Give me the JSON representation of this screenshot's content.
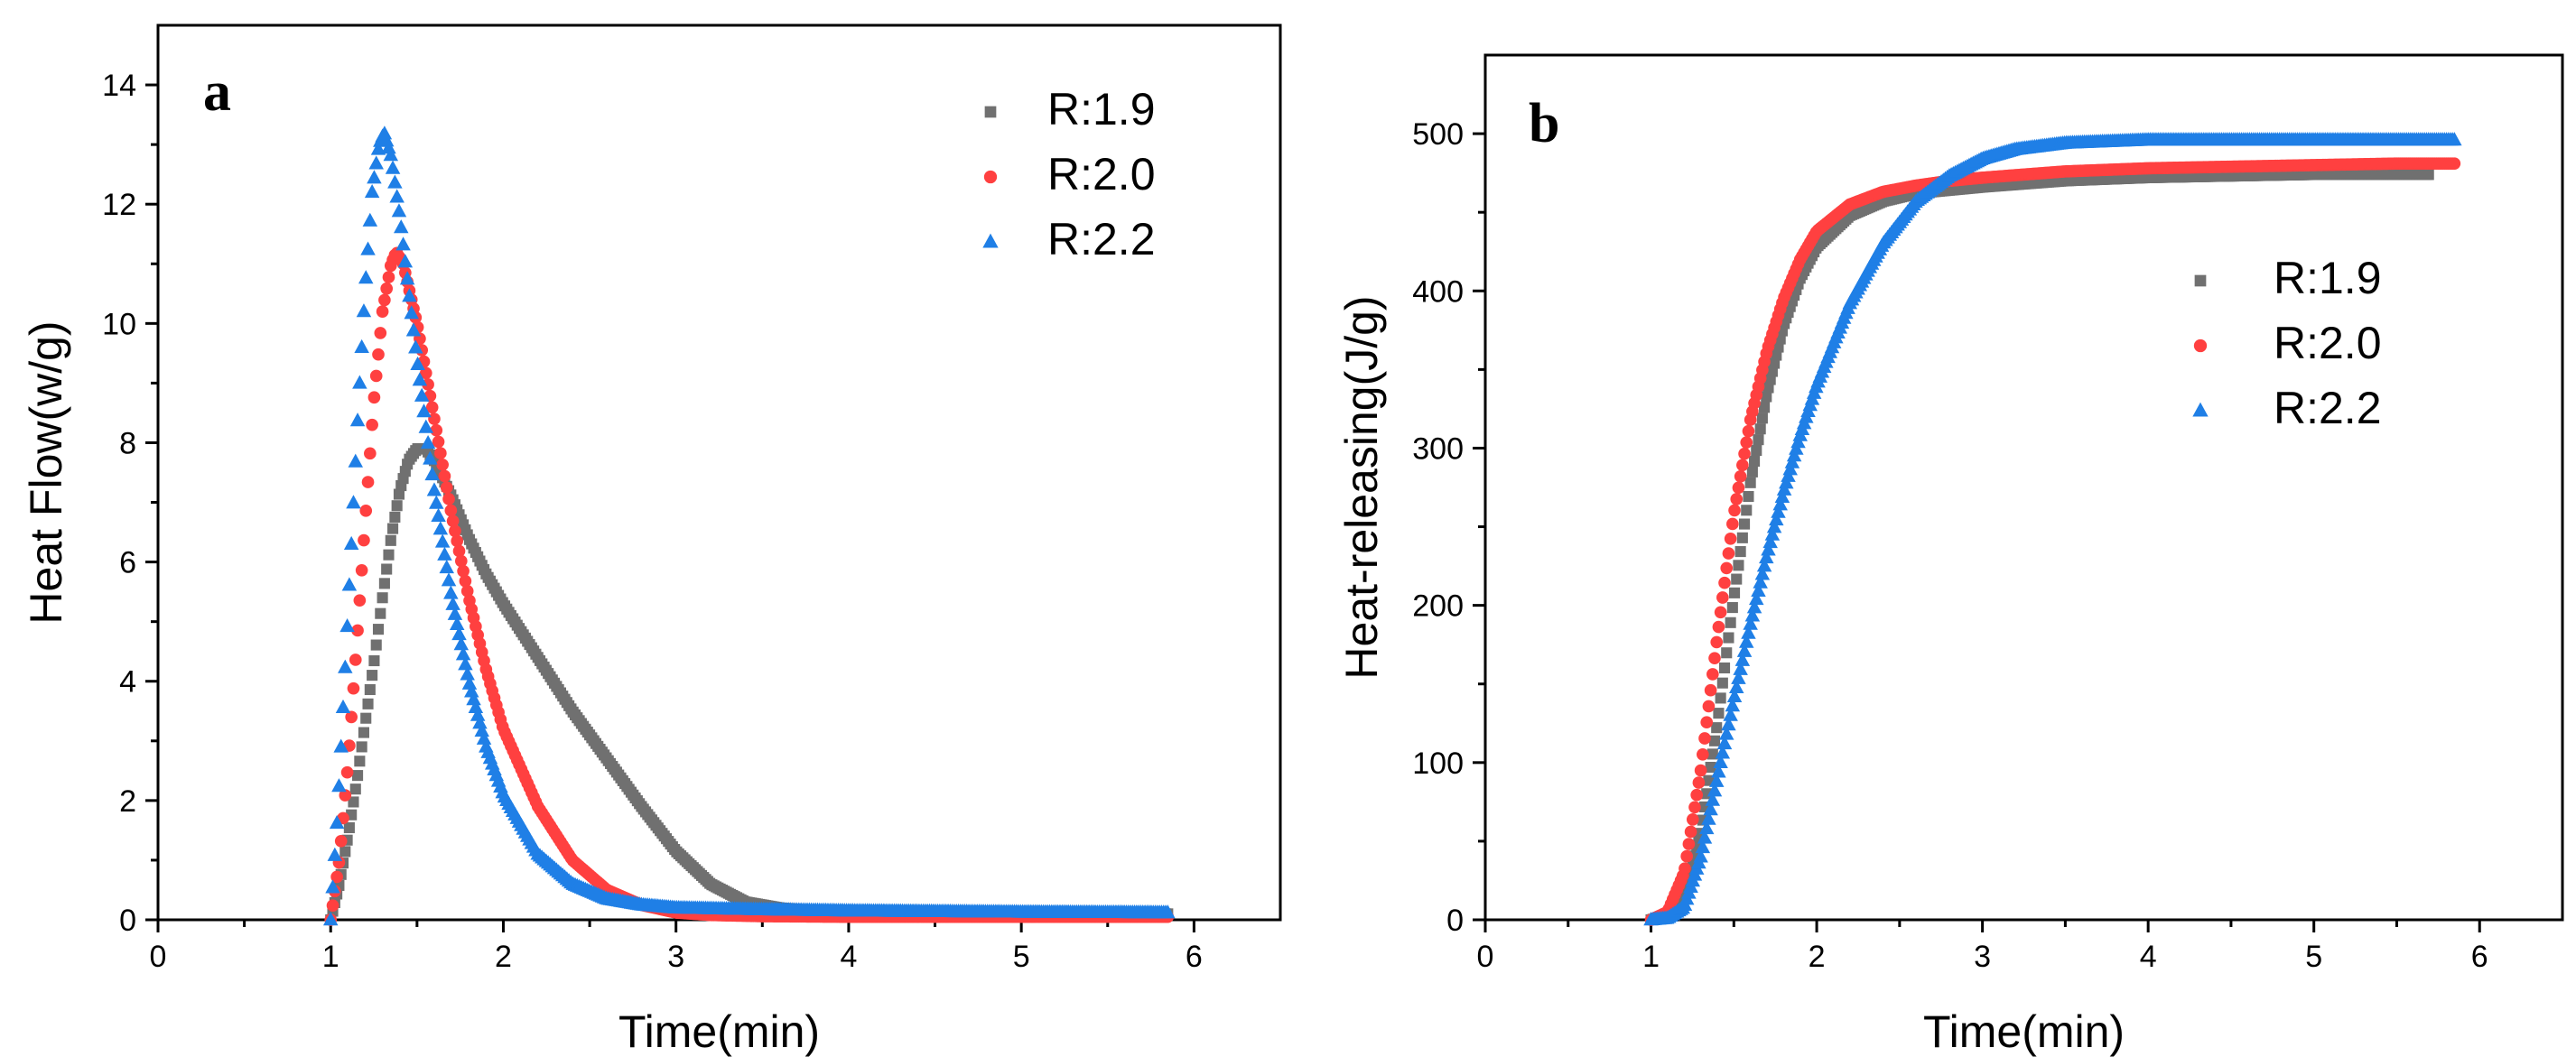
{
  "chart_data": [
    {
      "type": "scatter",
      "panel_label": "a",
      "xlabel": "Time(min)",
      "ylabel": "Heat Flow(w/g)",
      "xlim": [
        0,
        6.5
      ],
      "ylim": [
        0,
        15
      ],
      "xticks": [
        0,
        1,
        2,
        3,
        4,
        5,
        6
      ],
      "yticks": [
        0,
        2,
        4,
        6,
        8,
        10,
        12,
        14
      ],
      "legend_position": "top-right",
      "series": [
        {
          "name": "R:1.9",
          "color": "#707070",
          "marker": "square",
          "points": [
            [
              1.0,
              0.0
            ],
            [
              1.05,
              0.6
            ],
            [
              1.1,
              1.4
            ],
            [
              1.15,
              2.3
            ],
            [
              1.2,
              3.3
            ],
            [
              1.25,
              4.3
            ],
            [
              1.3,
              5.4
            ],
            [
              1.35,
              6.4
            ],
            [
              1.4,
              7.2
            ],
            [
              1.45,
              7.7
            ],
            [
              1.5,
              7.9
            ],
            [
              1.55,
              7.9
            ],
            [
              1.6,
              7.7
            ],
            [
              1.7,
              7.1
            ],
            [
              1.8,
              6.4
            ],
            [
              1.9,
              5.8
            ],
            [
              2.0,
              5.3
            ],
            [
              2.2,
              4.4
            ],
            [
              2.4,
              3.5
            ],
            [
              2.6,
              2.7
            ],
            [
              2.8,
              1.9
            ],
            [
              3.0,
              1.15
            ],
            [
              3.2,
              0.6
            ],
            [
              3.4,
              0.3
            ],
            [
              3.6,
              0.2
            ],
            [
              3.8,
              0.15
            ],
            [
              4.0,
              0.12
            ],
            [
              4.5,
              0.1
            ],
            [
              5.0,
              0.1
            ],
            [
              5.5,
              0.1
            ],
            [
              5.85,
              0.1
            ]
          ]
        },
        {
          "name": "R:2.0",
          "color": "#ff4040",
          "marker": "circle",
          "points": [
            [
              1.0,
              0.0
            ],
            [
              1.05,
              1.0
            ],
            [
              1.1,
              2.6
            ],
            [
              1.15,
              4.6
            ],
            [
              1.2,
              6.7
            ],
            [
              1.25,
              8.7
            ],
            [
              1.3,
              10.2
            ],
            [
              1.35,
              11.0
            ],
            [
              1.38,
              11.2
            ],
            [
              1.42,
              11.0
            ],
            [
              1.5,
              10.0
            ],
            [
              1.6,
              8.4
            ],
            [
              1.7,
              6.8
            ],
            [
              1.8,
              5.4
            ],
            [
              1.9,
              4.2
            ],
            [
              2.0,
              3.2
            ],
            [
              2.2,
              1.9
            ],
            [
              2.4,
              1.0
            ],
            [
              2.6,
              0.5
            ],
            [
              2.8,
              0.25
            ],
            [
              3.0,
              0.12
            ],
            [
              3.2,
              0.08
            ],
            [
              3.5,
              0.06
            ],
            [
              4.0,
              0.05
            ],
            [
              5.0,
              0.05
            ],
            [
              5.85,
              0.05
            ]
          ]
        },
        {
          "name": "R:2.2",
          "color": "#1f7fe6",
          "marker": "triangle",
          "points": [
            [
              1.0,
              0.0
            ],
            [
              1.04,
              1.8
            ],
            [
              1.08,
              4.0
            ],
            [
              1.12,
              6.3
            ],
            [
              1.16,
              8.6
            ],
            [
              1.2,
              10.6
            ],
            [
              1.24,
              12.2
            ],
            [
              1.28,
              13.0
            ],
            [
              1.31,
              13.2
            ],
            [
              1.35,
              12.8
            ],
            [
              1.4,
              11.8
            ],
            [
              1.5,
              9.4
            ],
            [
              1.6,
              7.2
            ],
            [
              1.7,
              5.4
            ],
            [
              1.8,
              4.0
            ],
            [
              1.9,
              2.9
            ],
            [
              2.0,
              2.1
            ],
            [
              2.2,
              1.1
            ],
            [
              2.4,
              0.6
            ],
            [
              2.6,
              0.35
            ],
            [
              2.8,
              0.25
            ],
            [
              3.0,
              0.2
            ],
            [
              3.5,
              0.17
            ],
            [
              4.0,
              0.15
            ],
            [
              5.0,
              0.13
            ],
            [
              5.85,
              0.12
            ]
          ]
        }
      ]
    },
    {
      "type": "scatter",
      "panel_label": "b",
      "xlabel": "Time(min)",
      "ylabel": "Heat-releasing(J/g)",
      "xlim": [
        0,
        6.5
      ],
      "ylim": [
        0,
        550
      ],
      "xticks": [
        0,
        1,
        2,
        3,
        4,
        5,
        6
      ],
      "yticks": [
        0,
        100,
        200,
        300,
        400,
        500
      ],
      "legend_position": "right",
      "series": [
        {
          "name": "R:1.9",
          "color": "#707070",
          "marker": "square",
          "points": [
            [
              1.0,
              0.0
            ],
            [
              1.1,
              3
            ],
            [
              1.2,
              15
            ],
            [
              1.3,
              55
            ],
            [
              1.4,
              125
            ],
            [
              1.5,
              205
            ],
            [
              1.6,
              278
            ],
            [
              1.7,
              335
            ],
            [
              1.8,
              378
            ],
            [
              1.9,
              408
            ],
            [
              2.0,
              428
            ],
            [
              2.2,
              448
            ],
            [
              2.4,
              457
            ],
            [
              2.6,
              462
            ],
            [
              2.8,
              464
            ],
            [
              3.0,
              466
            ],
            [
              3.5,
              470
            ],
            [
              4.0,
              472
            ],
            [
              4.5,
              473
            ],
            [
              5.0,
              474
            ],
            [
              5.5,
              474
            ],
            [
              5.7,
              474
            ]
          ]
        },
        {
          "name": "R:2.0",
          "color": "#ff4040",
          "marker": "circle",
          "points": [
            [
              1.0,
              0.0
            ],
            [
              1.1,
              5
            ],
            [
              1.2,
              30
            ],
            [
              1.3,
              95
            ],
            [
              1.4,
              180
            ],
            [
              1.5,
              258
            ],
            [
              1.6,
              318
            ],
            [
              1.7,
              362
            ],
            [
              1.8,
              395
            ],
            [
              1.9,
              420
            ],
            [
              2.0,
              438
            ],
            [
              2.2,
              455
            ],
            [
              2.4,
              463
            ],
            [
              2.6,
              467
            ],
            [
              2.8,
              470
            ],
            [
              3.0,
              472
            ],
            [
              3.5,
              476
            ],
            [
              4.0,
              478
            ],
            [
              4.5,
              479
            ],
            [
              5.0,
              480
            ],
            [
              5.5,
              481
            ],
            [
              5.85,
              481
            ]
          ]
        },
        {
          "name": "R:2.2",
          "color": "#1f7fe6",
          "marker": "triangle",
          "points": [
            [
              1.0,
              0.0
            ],
            [
              1.1,
              1
            ],
            [
              1.2,
              8
            ],
            [
              1.3,
              40
            ],
            [
              1.4,
              90
            ],
            [
              1.5,
              140
            ],
            [
              1.6,
              188
            ],
            [
              1.7,
              232
            ],
            [
              1.8,
              272
            ],
            [
              1.9,
              308
            ],
            [
              2.0,
              340
            ],
            [
              2.2,
              392
            ],
            [
              2.4,
              430
            ],
            [
              2.6,
              457
            ],
            [
              2.8,
              473
            ],
            [
              3.0,
              484
            ],
            [
              3.2,
              490
            ],
            [
              3.5,
              494
            ],
            [
              4.0,
              496
            ],
            [
              4.5,
              496
            ],
            [
              5.0,
              496
            ],
            [
              5.5,
              496
            ],
            [
              5.85,
              496
            ]
          ]
        }
      ]
    }
  ]
}
